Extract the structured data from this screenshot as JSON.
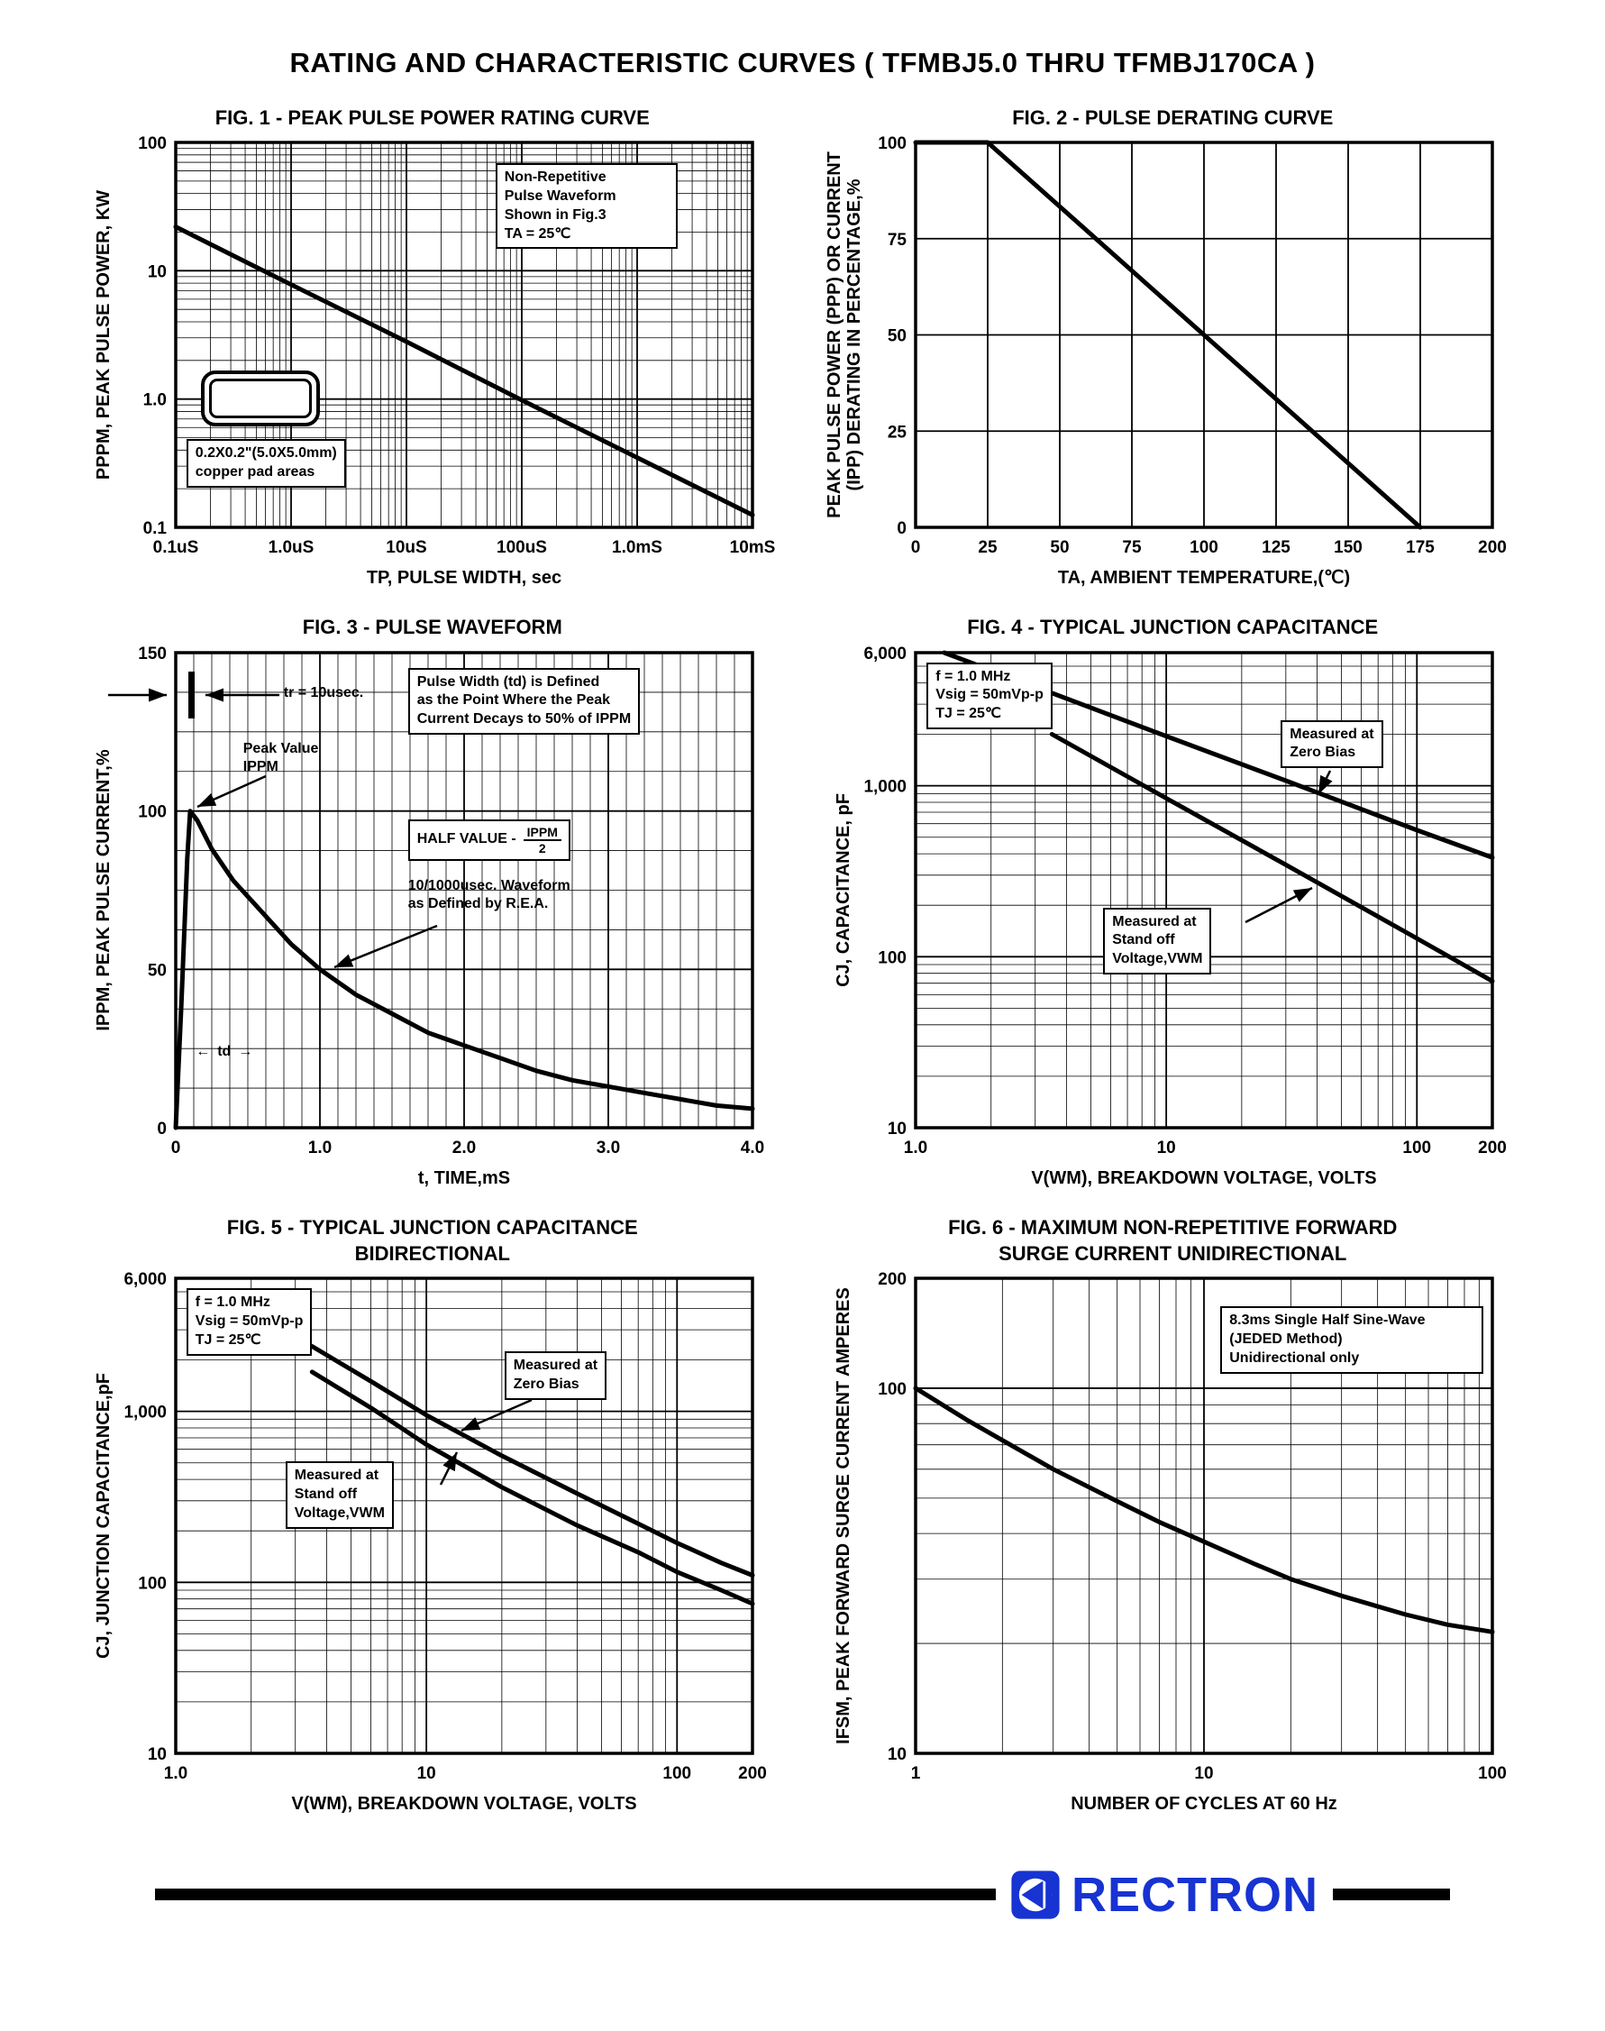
{
  "page": {
    "title": "RATING AND CHARACTERISTIC CURVES ( TFMBJ5.0 THRU TFMBJ170CA )",
    "brand": "RECTRON",
    "brand_color": "#1733d2"
  },
  "chart_data": [
    {
      "type": "line",
      "title": "FIG. 1 - PEAK PULSE POWER RATING CURVE",
      "xlabel": "TP, PULSE WIDTH, sec",
      "ylabel": "PPPM, PEAK PULSE POWER, KW",
      "x_scale": "log",
      "y_scale": "log",
      "x_range": [
        1e-07,
        0.01
      ],
      "y_range": [
        0.1,
        100
      ],
      "grid": "on",
      "legend": "none",
      "x_ticks": [
        {
          "v": 1e-07,
          "label": "0.1uS"
        },
        {
          "v": 1e-06,
          "label": "1.0uS"
        },
        {
          "v": 1e-05,
          "label": "10uS"
        },
        {
          "v": 0.0001,
          "label": "100uS"
        },
        {
          "v": 0.001,
          "label": "1.0mS"
        },
        {
          "v": 0.01,
          "label": "10mS"
        }
      ],
      "y_ticks": [
        {
          "v": 0.1,
          "label": "0.1"
        },
        {
          "v": 1,
          "label": "1.0"
        },
        {
          "v": 10,
          "label": "10"
        },
        {
          "v": 100,
          "label": "100"
        }
      ],
      "series": [
        {
          "name": "peak pulse power",
          "points": [
            [
              1e-07,
              22
            ],
            [
              1e-06,
              7.8
            ],
            [
              1e-05,
              2.8
            ],
            [
              0.0001,
              0.98
            ],
            [
              0.001,
              0.35
            ],
            [
              0.01,
              0.125
            ]
          ]
        }
      ],
      "ann": {
        "note": "Non-Repetitive\nPulse Waveform\nShown in Fig.3\nTA = 25℃",
        "pad": "0.2X0.2\"(5.0X5.0mm)\ncopper pad areas"
      }
    },
    {
      "type": "line",
      "title": "FIG. 2 - PULSE DERATING CURVE",
      "xlabel": "TA, AMBIENT TEMPERATURE,(℃)",
      "ylabel": "PEAK PULSE POWER (PPP) OR CURRENT",
      "ylabel2": "(IPP) DERATING IN PERCENTAGE,%",
      "x_scale": "linear",
      "y_scale": "linear",
      "x_range": [
        0,
        200
      ],
      "y_range": [
        0,
        100
      ],
      "grid": "on",
      "legend": "none",
      "x_ticks": [
        {
          "v": 0,
          "label": "0"
        },
        {
          "v": 25,
          "label": "25"
        },
        {
          "v": 50,
          "label": "50"
        },
        {
          "v": 75,
          "label": "75"
        },
        {
          "v": 100,
          "label": "100"
        },
        {
          "v": 125,
          "label": "125"
        },
        {
          "v": 150,
          "label": "150"
        },
        {
          "v": 175,
          "label": "175"
        },
        {
          "v": 200,
          "label": "200"
        }
      ],
      "y_ticks": [
        {
          "v": 0,
          "label": "0"
        },
        {
          "v": 25,
          "label": "25"
        },
        {
          "v": 50,
          "label": "50"
        },
        {
          "v": 75,
          "label": "75"
        },
        {
          "v": 100,
          "label": "100"
        }
      ],
      "series": [
        {
          "name": "derating",
          "points": [
            [
              0,
              100
            ],
            [
              25,
              100
            ],
            [
              175,
              0
            ]
          ]
        }
      ]
    },
    {
      "type": "line",
      "title": "FIG. 3 - PULSE WAVEFORM",
      "xlabel": "t, TIME,mS",
      "ylabel": "IPPM, PEAK PULSE CURRENT,%",
      "x_scale": "linear",
      "y_scale": "linear",
      "x_range": [
        0,
        4
      ],
      "y_range": [
        0,
        150
      ],
      "x_minor_step": 0.125,
      "y_minor_step": 12.5,
      "grid": "on",
      "legend": "none",
      "x_ticks": [
        {
          "v": 0,
          "label": "0"
        },
        {
          "v": 1,
          "label": "1.0"
        },
        {
          "v": 2,
          "label": "2.0"
        },
        {
          "v": 3,
          "label": "3.0"
        },
        {
          "v": 4,
          "label": "4.0"
        }
      ],
      "y_ticks": [
        {
          "v": 0,
          "label": "0"
        },
        {
          "v": 50,
          "label": "50"
        },
        {
          "v": 100,
          "label": "100"
        },
        {
          "v": 150,
          "label": "150"
        }
      ],
      "series": [
        {
          "name": "10/1000usec pulse waveform",
          "points": [
            [
              0,
              0
            ],
            [
              0.04,
              40
            ],
            [
              0.08,
              85
            ],
            [
              0.1,
              100
            ],
            [
              0.15,
              97
            ],
            [
              0.25,
              88
            ],
            [
              0.4,
              78
            ],
            [
              0.6,
              68
            ],
            [
              0.8,
              58
            ],
            [
              1.0,
              50
            ],
            [
              1.25,
              42
            ],
            [
              1.5,
              36
            ],
            [
              1.75,
              30
            ],
            [
              2.0,
              26
            ],
            [
              2.25,
              22
            ],
            [
              2.5,
              18
            ],
            [
              2.75,
              15
            ],
            [
              3.0,
              13
            ],
            [
              3.25,
              11
            ],
            [
              3.5,
              9
            ],
            [
              3.75,
              7
            ],
            [
              4.0,
              6
            ]
          ]
        }
      ],
      "ann": {
        "tr": "tr = 10usec.",
        "peak": "Peak Value\nIPPM",
        "def": "Pulse Width (td) is Defined\nas the Point Where the Peak\nCurrent Decays to 50% of IPPM",
        "half_label": "HALF VALUE -",
        "half_num": "IPPM",
        "half_den": "2",
        "rea": "10/1000usec. Waveform\nas Defined by R.E.A.",
        "td": "td"
      }
    },
    {
      "type": "line",
      "title": "FIG. 4 - TYPICAL JUNCTION CAPACITANCE",
      "xlabel": "V(WM), BREAKDOWN VOLTAGE, VOLTS",
      "ylabel": "CJ, CAPACITANCE, pF",
      "x_scale": "log",
      "y_scale": "log",
      "x_range": [
        1,
        200
      ],
      "y_range": [
        10,
        6000
      ],
      "grid": "on",
      "legend": "none",
      "x_ticks": [
        {
          "v": 1,
          "label": "1.0"
        },
        {
          "v": 10,
          "label": "10"
        },
        {
          "v": 100,
          "label": "100"
        },
        {
          "v": 200,
          "label": "200"
        }
      ],
      "y_ticks": [
        {
          "v": 10,
          "label": "10"
        },
        {
          "v": 100,
          "label": "100"
        },
        {
          "v": 1000,
          "label": "1,000"
        },
        {
          "v": 6000,
          "label": "6,000"
        }
      ],
      "series": [
        {
          "name": "Measured at Zero Bias",
          "points": [
            [
              1.3,
              6000
            ],
            [
              3,
              3790
            ],
            [
              10,
              1950
            ],
            [
              30,
              1070
            ],
            [
              100,
              550
            ],
            [
              200,
              380
            ]
          ]
        },
        {
          "name": "Measured at Stand off Voltage,VWM",
          "points": [
            [
              3.5,
              2000
            ],
            [
              10,
              845
            ],
            [
              30,
              345
            ],
            [
              100,
              128
            ],
            [
              200,
              72
            ]
          ]
        }
      ],
      "ann": {
        "params": "f = 1.0 MHz\nVsig = 50mVp-p\nTJ = 25℃",
        "zero": "Measured at\nZero Bias",
        "standoff": "Measured at\nStand off\nVoltage,VWM"
      }
    },
    {
      "type": "line",
      "title": "FIG. 5 - TYPICAL JUNCTION CAPACITANCE",
      "title2": "BIDIRECTIONAL",
      "xlabel": "V(WM), BREAKDOWN VOLTAGE, VOLTS",
      "ylabel": "CJ, JUNCTION CAPACITANCE,pF",
      "x_scale": "log",
      "y_scale": "log",
      "x_range": [
        1,
        200
      ],
      "y_range": [
        10,
        6000
      ],
      "grid": "on",
      "legend": "none",
      "x_ticks": [
        {
          "v": 1,
          "label": "1.0"
        },
        {
          "v": 10,
          "label": "10"
        },
        {
          "v": 100,
          "label": "100"
        },
        {
          "v": 200,
          "label": "200"
        }
      ],
      "y_ticks": [
        {
          "v": 10,
          "label": "10"
        },
        {
          "v": 100,
          "label": "100"
        },
        {
          "v": 1000,
          "label": "1,000"
        },
        {
          "v": 6000,
          "label": "6,000"
        }
      ],
      "series": [
        {
          "name": "Measured at Zero Bias",
          "points": [
            [
              3.5,
              2400
            ],
            [
              6,
              1500
            ],
            [
              10,
              950
            ],
            [
              20,
              550
            ],
            [
              40,
              330
            ],
            [
              70,
              220
            ],
            [
              100,
              170
            ],
            [
              150,
              130
            ],
            [
              200,
              110
            ]
          ]
        },
        {
          "name": "Measured at Stand off Voltage,VWM",
          "points": [
            [
              3.5,
              1700
            ],
            [
              6,
              1050
            ],
            [
              10,
              640
            ],
            [
              20,
              360
            ],
            [
              40,
              215
            ],
            [
              70,
              150
            ],
            [
              100,
              115
            ],
            [
              150,
              90
            ],
            [
              200,
              75
            ]
          ]
        }
      ],
      "ann": {
        "params": "f = 1.0 MHz\nVsig = 50mVp-p\nTJ = 25℃",
        "zero": "Measured at\nZero Bias",
        "standoff": "Measured at\nStand off\nVoltage,VWM"
      }
    },
    {
      "type": "line",
      "title": "FIG. 6 - MAXIMUM NON-REPETITIVE FORWARD",
      "title2": "SURGE CURRENT UNIDIRECTIONAL",
      "xlabel": "NUMBER OF CYCLES AT 60 Hz",
      "ylabel": "IFSM, PEAK FORWARD SURGE CURRENT AMPERES",
      "x_scale": "log",
      "y_scale": "log",
      "x_range": [
        1,
        100
      ],
      "y_range": [
        10,
        200
      ],
      "grid": "on",
      "legend": "none",
      "x_ticks": [
        {
          "v": 1,
          "label": "1"
        },
        {
          "v": 10,
          "label": "10"
        },
        {
          "v": 100,
          "label": "100"
        }
      ],
      "y_ticks": [
        {
          "v": 10,
          "label": "10"
        },
        {
          "v": 100,
          "label": "100"
        },
        {
          "v": 200,
          "label": "200"
        }
      ],
      "series": [
        {
          "name": "surge current",
          "points": [
            [
              1,
              100
            ],
            [
              1.5,
              82
            ],
            [
              2,
              72
            ],
            [
              3,
              60
            ],
            [
              5,
              49
            ],
            [
              7,
              43
            ],
            [
              10,
              38
            ],
            [
              15,
              33
            ],
            [
              20,
              30
            ],
            [
              30,
              27
            ],
            [
              50,
              24
            ],
            [
              70,
              22.5
            ],
            [
              100,
              21.5
            ]
          ]
        }
      ],
      "ann": {
        "note": "8.3ms Single Half Sine-Wave\n(JEDED Method)\nUnidirectional only"
      }
    }
  ]
}
